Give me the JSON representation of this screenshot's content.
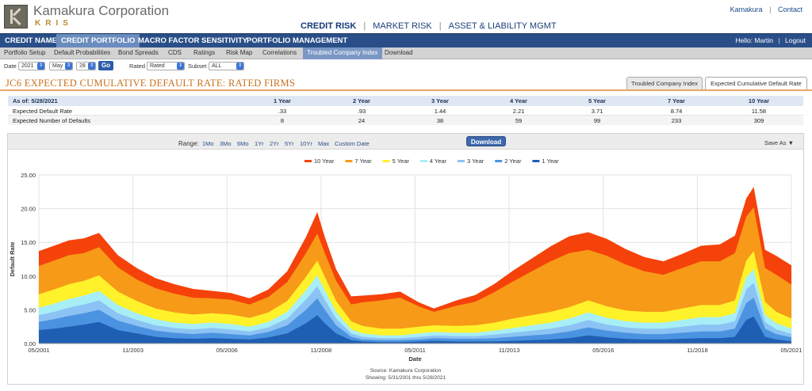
{
  "brand": {
    "name": "Kamakura Corporation",
    "sub": "KRIS",
    "logo_icon": "kamakura-k-logo-icon"
  },
  "main_nav": [
    {
      "label": "CREDIT RISK",
      "active": true
    },
    {
      "label": "MARKET RISK",
      "active": false
    },
    {
      "label": "ASSET & LIABILITY MGMT",
      "active": false
    }
  ],
  "top_links": [
    "Kamakura",
    "Contact"
  ],
  "nav_primary": [
    {
      "label": "CREDIT NAME",
      "active": false
    },
    {
      "label": "CREDIT PORTFOLIO",
      "active": true
    },
    {
      "label": "MACRO FACTOR SENSITIVITY",
      "active": false
    },
    {
      "label": "PORTFOLIO MANAGEMENT",
      "active": false
    }
  ],
  "user": {
    "greeting": "Hello: Martin",
    "logout": "Logout"
  },
  "nav_secondary": [
    {
      "label": "Portfolio Setup",
      "active": false
    },
    {
      "label": "Default Probabilities",
      "active": false
    },
    {
      "label": "Bond Spreads",
      "active": false
    },
    {
      "label": "CDS",
      "active": false
    },
    {
      "label": "Ratings",
      "active": false
    },
    {
      "label": "Risk Map",
      "active": false
    },
    {
      "label": "Correlations",
      "active": false
    },
    {
      "label": "Troubled Company Index",
      "active": true
    },
    {
      "label": "Download",
      "active": false
    }
  ],
  "filters": {
    "date_label": "Date",
    "year": "2021",
    "month": "May",
    "day": "28",
    "go": "Go",
    "rated_label": "Rated",
    "rated_value": "Rated",
    "subset_label": "Subset",
    "subset_value": "ALL"
  },
  "page_title": "JC6 EXPECTED CUMULATIVE DEFAULT RATE: RATED FIRMS",
  "tabs": [
    {
      "label": "Troubled Company Index",
      "active": false
    },
    {
      "label": "Expected Cumulative Default Rate",
      "active": true
    }
  ],
  "stats": {
    "as_of": "As of: 5/28/2021",
    "horizons": [
      "1 Year",
      "2 Year",
      "3 Year",
      "4 Year",
      "5 Year",
      "7 Year",
      "10 Year"
    ],
    "rows": [
      {
        "label": "Expected Default Rate",
        "values": [
          ".33",
          ".93",
          "1.44",
          "2.21",
          "3.71",
          "8.74",
          "11.58"
        ]
      },
      {
        "label": "Expected Number of Defaults",
        "values": [
          "8",
          "24",
          "38",
          "59",
          "99",
          "233",
          "309"
        ]
      }
    ]
  },
  "range": {
    "label": "Range:",
    "options": [
      "1Mo",
      "3Mo",
      "6Mo",
      "1Yr",
      "2Yr",
      "5Yr",
      "10Yr",
      "Max",
      "Custom Date"
    ],
    "download": "Download",
    "save_as": "Save As"
  },
  "chart_data": {
    "type": "area",
    "stacked": true,
    "ylabel": "Default Rate",
    "xlabel": "Date",
    "ylim": [
      0,
      25
    ],
    "yticks": [
      "0.00",
      "5.00",
      "10.00",
      "15.00",
      "20.00",
      "25.00"
    ],
    "xticks": [
      "05/2001",
      "11/2003",
      "05/2006",
      "11/2008",
      "05/2011",
      "11/2013",
      "05/2016",
      "11/2018",
      "05/2021"
    ],
    "legend_position": "top-center",
    "x": [
      2001.4,
      2001.8,
      2002.2,
      2002.6,
      2003.0,
      2003.5,
      2004.0,
      2004.5,
      2005.0,
      2005.5,
      2006.0,
      2006.5,
      2007.0,
      2007.5,
      2008.0,
      2008.5,
      2008.8,
      2009.0,
      2009.3,
      2009.7,
      2010.0,
      2010.5,
      2011.0,
      2011.5,
      2011.9,
      2012.5,
      2013.0,
      2013.5,
      2014.0,
      2014.5,
      2015.0,
      2015.5,
      2016.0,
      2016.5,
      2017.0,
      2017.5,
      2018.0,
      2018.5,
      2019.0,
      2019.5,
      2019.9,
      2020.2,
      2020.4,
      2020.7,
      2021.0,
      2021.4
    ],
    "series": [
      {
        "name": "1 Year",
        "color": "#1e5fb3",
        "values": [
          2.0,
          2.2,
          2.5,
          2.8,
          3.2,
          2.0,
          1.5,
          1.0,
          0.8,
          0.7,
          0.8,
          0.7,
          0.6,
          0.9,
          1.5,
          3.0,
          4.2,
          3.0,
          1.5,
          0.5,
          0.3,
          0.2,
          0.2,
          0.3,
          0.4,
          0.3,
          0.3,
          0.3,
          0.4,
          0.5,
          0.6,
          0.8,
          1.2,
          0.9,
          0.7,
          0.6,
          0.6,
          0.7,
          0.8,
          0.8,
          1.0,
          3.5,
          4.0,
          1.0,
          0.6,
          0.33
        ]
      },
      {
        "name": "2 Year",
        "color": "#4b93e0",
        "values": [
          1.2,
          1.4,
          1.6,
          1.7,
          1.8,
          1.4,
          1.1,
          0.9,
          0.8,
          0.7,
          0.8,
          0.7,
          0.6,
          0.8,
          1.2,
          2.0,
          2.5,
          2.0,
          1.2,
          0.5,
          0.3,
          0.3,
          0.3,
          0.3,
          0.4,
          0.4,
          0.4,
          0.5,
          0.6,
          0.7,
          0.8,
          1.0,
          1.2,
          1.0,
          0.9,
          0.8,
          0.8,
          0.9,
          1.0,
          1.0,
          1.2,
          2.5,
          2.8,
          1.2,
          0.8,
          0.6
        ]
      },
      {
        "name": "3 Year",
        "color": "#8cc3f4",
        "values": [
          1.0,
          1.1,
          1.2,
          1.3,
          1.4,
          1.1,
          0.9,
          0.8,
          0.7,
          0.7,
          0.7,
          0.7,
          0.6,
          0.7,
          1.0,
          1.5,
          1.8,
          1.5,
          1.0,
          0.5,
          0.4,
          0.3,
          0.3,
          0.4,
          0.4,
          0.4,
          0.4,
          0.5,
          0.6,
          0.7,
          0.8,
          0.9,
          1.1,
          0.9,
          0.8,
          0.8,
          0.8,
          0.9,
          1.0,
          1.0,
          1.1,
          2.0,
          2.2,
          1.0,
          0.7,
          0.51
        ]
      },
      {
        "name": "4 Year",
        "color": "#a7eef7",
        "values": [
          1.1,
          1.2,
          1.3,
          1.3,
          1.4,
          1.2,
          1.0,
          0.9,
          0.8,
          0.8,
          0.8,
          0.8,
          0.7,
          0.8,
          1.0,
          1.4,
          1.6,
          1.4,
          1.0,
          0.6,
          0.5,
          0.4,
          0.4,
          0.5,
          0.5,
          0.5,
          0.5,
          0.6,
          0.7,
          0.8,
          0.9,
          1.0,
          1.1,
          1.0,
          0.9,
          0.9,
          0.9,
          1.0,
          1.1,
          1.1,
          1.2,
          1.8,
          2.0,
          1.1,
          0.9,
          0.77
        ]
      },
      {
        "name": "5 Year",
        "color": "#fff22a",
        "values": [
          2.0,
          2.1,
          2.2,
          2.2,
          2.3,
          2.0,
          1.8,
          1.6,
          1.5,
          1.4,
          1.4,
          1.4,
          1.3,
          1.4,
          1.6,
          2.0,
          2.2,
          2.0,
          1.6,
          1.2,
          1.1,
          1.0,
          1.0,
          1.0,
          1.0,
          1.0,
          1.1,
          1.2,
          1.4,
          1.5,
          1.6,
          1.7,
          1.8,
          1.7,
          1.6,
          1.6,
          1.6,
          1.7,
          1.8,
          1.8,
          1.9,
          2.5,
          2.7,
          1.9,
          1.7,
          1.5
        ]
      },
      {
        "name": "7 Year",
        "color": "#f79a18",
        "values": [
          4.2,
          4.3,
          4.3,
          4.1,
          4.2,
          3.6,
          3.2,
          3.0,
          2.8,
          2.5,
          2.2,
          2.2,
          2.0,
          2.3,
          2.8,
          3.5,
          4.0,
          3.5,
          3.0,
          2.5,
          3.5,
          4.2,
          4.6,
          3.0,
          2.0,
          3.0,
          3.5,
          4.5,
          5.5,
          6.5,
          7.5,
          8.0,
          7.5,
          7.5,
          6.8,
          6.0,
          5.5,
          6.0,
          6.5,
          6.5,
          7.0,
          6.5,
          6.5,
          5.0,
          5.5,
          5.03
        ]
      },
      {
        "name": "10 Year",
        "color": "#f5420a",
        "values": [
          2.2,
          2.2,
          2.2,
          2.2,
          2.1,
          1.8,
          1.7,
          1.5,
          1.4,
          1.3,
          1.1,
          1.0,
          0.9,
          1.1,
          1.6,
          2.4,
          3.2,
          2.4,
          1.7,
          1.2,
          1.0,
          0.9,
          0.9,
          0.6,
          0.5,
          0.8,
          1.0,
          1.2,
          1.6,
          1.9,
          2.2,
          2.5,
          2.6,
          2.5,
          2.3,
          2.1,
          2.0,
          2.1,
          2.3,
          2.5,
          2.6,
          2.7,
          3.0,
          2.7,
          2.8,
          2.84
        ]
      }
    ],
    "source": "Source: Kamakura Corporation",
    "showing": "Showing: 5/31/2001 thru 5/28/2021"
  }
}
